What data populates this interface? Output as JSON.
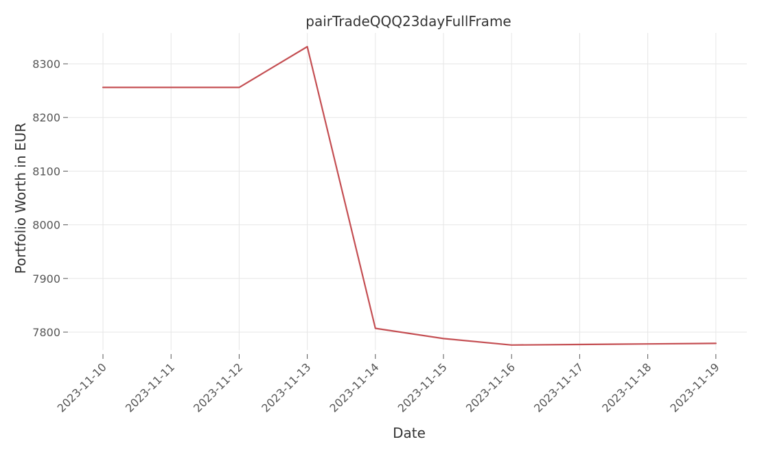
{
  "chart_data": {
    "type": "line",
    "title": "pairTradeQQQ23dayFullFrame",
    "xlabel": "Date",
    "ylabel": "Portfolio Worth in EUR",
    "x": [
      "2023-11-10",
      "2023-11-11",
      "2023-11-12",
      "2023-11-13",
      "2023-11-14",
      "2023-11-15",
      "2023-11-16",
      "2023-11-17",
      "2023-11-18",
      "2023-11-19"
    ],
    "series": [
      {
        "values": [
          8256,
          8256,
          8256,
          8332,
          7807,
          7788,
          7776,
          7777,
          7778,
          7779
        ]
      }
    ],
    "yticks": [
      7800,
      7900,
      8000,
      8100,
      8200,
      8300
    ],
    "ylim": [
      7750,
      8360
    ],
    "grid": true,
    "line_color": "#c44e52"
  }
}
